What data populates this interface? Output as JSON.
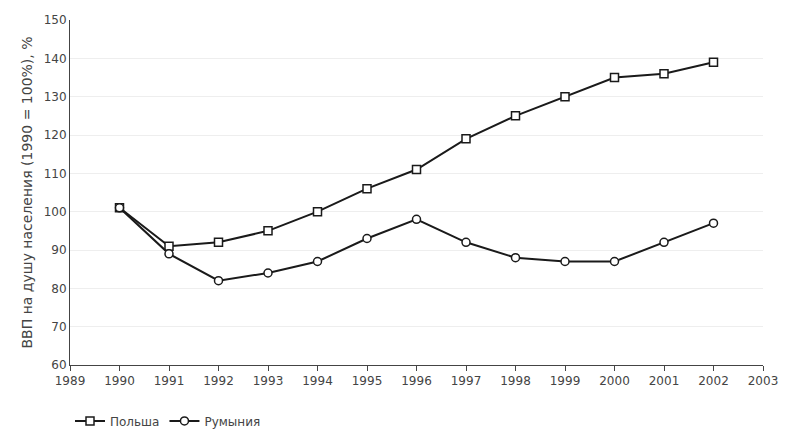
{
  "chart_data": {
    "type": "line",
    "x": [
      1990,
      1991,
      1992,
      1993,
      1994,
      1995,
      1996,
      1997,
      1998,
      1999,
      2000,
      2001,
      2002
    ],
    "series": [
      {
        "name": "Польша",
        "color": "#1a1a1a",
        "marker": "square",
        "values": [
          101,
          91,
          92,
          95,
          100,
          106,
          111,
          119,
          125,
          130,
          135,
          136,
          139
        ]
      },
      {
        "name": "Румыния",
        "color": "#1a1a1a",
        "marker": "circle",
        "values": [
          101,
          89,
          82,
          84,
          87,
          93,
          98,
          92,
          88,
          87,
          87,
          92,
          97
        ]
      }
    ],
    "ylabel": "ВВП на душу населения (1990 = 100%), %",
    "xlim": [
      1989,
      2003
    ],
    "xticks": [
      1989,
      1990,
      1991,
      1992,
      1993,
      1994,
      1995,
      1996,
      1997,
      1998,
      1999,
      2000,
      2001,
      2002,
      2003
    ],
    "ylim": [
      60,
      150
    ],
    "yticks": [
      60,
      70,
      80,
      90,
      100,
      110,
      120,
      130,
      140,
      150
    ],
    "grid": true,
    "legend": "bottom"
  }
}
